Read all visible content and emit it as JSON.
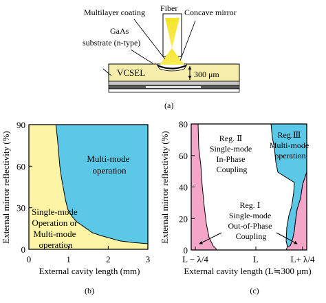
{
  "figure_a": {
    "labels": {
      "multilayer": "Multilayer coating",
      "fiber": "Fiber",
      "concave": "Concave mirror",
      "gaas_1": "GaAs",
      "gaas_2": "substrate (n-type)",
      "vcsel": "VCSEL",
      "distance": "300 μm"
    },
    "caption": "(a)"
  },
  "chart_data": [
    {
      "type": "area",
      "panel": "(b)",
      "xlabel": "External cavity length (mm)",
      "ylabel": "External mirror reflectivity (%)",
      "xlim": [
        0,
        3
      ],
      "ylim": [
        0,
        90
      ],
      "x_ticks": [
        "0",
        "1",
        "2",
        "3"
      ],
      "y_ticks": [
        "0",
        "30",
        "60",
        "90"
      ],
      "regions": [
        {
          "name": "Multi-mode operation",
          "label_lines": [
            "Multi-mode",
            "operation"
          ],
          "color": "#5bc8e8"
        },
        {
          "name": "Single-mode Operation or Multi-mode operation",
          "label_lines": [
            "Single-mode",
            "Operation or",
            "Multi-mode",
            "operation"
          ],
          "color": "#fdf4a5"
        }
      ],
      "boundary": {
        "x": [
          0.68,
          0.72,
          0.75,
          0.78,
          0.82,
          0.87,
          0.92,
          0.98,
          1.08,
          1.2,
          1.4,
          1.6,
          1.8,
          2.05,
          2.3,
          2.6,
          2.8,
          3.0
        ],
        "y": [
          90,
          80,
          70,
          60,
          52,
          44,
          36,
          29,
          24,
          20,
          16,
          12,
          10,
          8,
          6,
          5,
          4.5,
          4
        ]
      }
    },
    {
      "type": "area",
      "panel": "(c)",
      "xlabel": "External cavity length (L≒300 μm)",
      "ylabel": "External mirror reflectivity (%)",
      "ylim": [
        0,
        80
      ],
      "x_ticks": [
        "L − λ/4",
        "L",
        "L+ λ/4"
      ],
      "y_ticks": [
        "0",
        "20",
        "40",
        "60",
        "80"
      ],
      "regions": [
        {
          "name": "Reg. II Single-mode In-Phase Coupling",
          "label_lines": [
            "Reg. Ⅱ",
            "Single-mode",
            "In-Phase",
            "Coupling"
          ],
          "color": "#ffffff"
        },
        {
          "name": "Reg. III Multi-mode operation",
          "label_lines": [
            "Reg.Ⅲ",
            "Multi-mode",
            "operation"
          ],
          "color": "#5bc8e8"
        },
        {
          "name": "Reg. I Single-mode Out-of-Phase Coupling",
          "label_lines": [
            "Reg. Ⅰ",
            "Single-mode",
            "Out-of-Phase",
            "Coupling"
          ],
          "color": "#f4a6c8"
        }
      ]
    }
  ],
  "captions": {
    "b": "(b)",
    "c": "(c)"
  }
}
